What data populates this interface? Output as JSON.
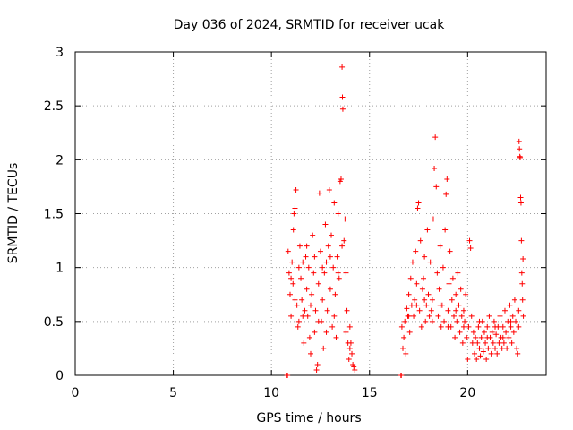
{
  "chart_data": {
    "type": "scatter",
    "title": "Day 036 of 2024, SRMTID for receiver ucak",
    "xlabel": "GPS time / hours",
    "ylabel": "SRMTID / TECUs",
    "xlim": [
      0,
      24
    ],
    "ylim": [
      0,
      3
    ],
    "xticks": [
      0,
      5,
      10,
      15,
      20
    ],
    "yticks": [
      0,
      0.5,
      1,
      1.5,
      2,
      2.5,
      3
    ],
    "xtick_labels": [
      "0",
      "5",
      "10",
      "15",
      "20"
    ],
    "ytick_labels": [
      "0",
      "0.5",
      "1",
      "1.5",
      "2",
      "2.5",
      "3"
    ],
    "grid": true,
    "marker": "+",
    "color": "#ff0000",
    "series": [
      {
        "name": "SRMTID",
        "points": [
          [
            10.8,
            0.0
          ],
          [
            10.82,
            0.0
          ],
          [
            16.6,
            0.0
          ],
          [
            16.62,
            0.0
          ],
          [
            10.85,
            1.15
          ],
          [
            10.9,
            0.95
          ],
          [
            10.95,
            0.75
          ],
          [
            11.0,
            0.55
          ],
          [
            11.05,
            1.05
          ],
          [
            11.1,
            0.85
          ],
          [
            11.12,
            1.35
          ],
          [
            11.15,
            1.5
          ],
          [
            11.2,
            1.55
          ],
          [
            11.25,
            1.72
          ],
          [
            11.3,
            0.65
          ],
          [
            11.35,
            0.45
          ],
          [
            11.4,
            0.5
          ],
          [
            11.45,
            1.2
          ],
          [
            11.5,
            0.9
          ],
          [
            11.55,
            0.7
          ],
          [
            11.6,
            1.05
          ],
          [
            11.65,
            0.3
          ],
          [
            11.7,
            0.6
          ],
          [
            11.75,
            1.1
          ],
          [
            11.8,
            0.8
          ],
          [
            11.85,
            0.55
          ],
          [
            11.9,
            1.0
          ],
          [
            11.95,
            0.35
          ],
          [
            12.0,
            0.2
          ],
          [
            12.05,
            0.75
          ],
          [
            12.1,
            1.3
          ],
          [
            12.15,
            0.95
          ],
          [
            12.2,
            0.4
          ],
          [
            12.25,
            0.6
          ],
          [
            12.3,
            0.05
          ],
          [
            12.35,
            0.1
          ],
          [
            12.4,
            0.85
          ],
          [
            12.45,
            1.69
          ],
          [
            12.5,
            1.15
          ],
          [
            12.55,
            0.5
          ],
          [
            12.6,
            0.7
          ],
          [
            12.65,
            0.25
          ],
          [
            12.7,
            0.95
          ],
          [
            12.75,
            1.4
          ],
          [
            12.8,
            1.05
          ],
          [
            12.85,
            0.6
          ],
          [
            12.9,
            1.2
          ],
          [
            12.95,
            1.72
          ],
          [
            13.0,
            0.8
          ],
          [
            13.05,
            1.3
          ],
          [
            13.1,
            0.45
          ],
          [
            13.15,
            1.0
          ],
          [
            13.2,
            1.6
          ],
          [
            13.25,
            0.75
          ],
          [
            13.3,
            0.35
          ],
          [
            13.35,
            1.1
          ],
          [
            13.4,
            1.5
          ],
          [
            13.45,
            0.9
          ],
          [
            13.5,
            1.8
          ],
          [
            13.55,
            1.82
          ],
          [
            13.6,
            2.86
          ],
          [
            13.62,
            2.58
          ],
          [
            13.64,
            2.47
          ],
          [
            13.7,
            1.25
          ],
          [
            13.75,
            1.45
          ],
          [
            13.8,
            0.95
          ],
          [
            13.85,
            0.6
          ],
          [
            13.9,
            0.3
          ],
          [
            13.95,
            0.15
          ],
          [
            14.0,
            0.45
          ],
          [
            14.05,
            0.3
          ],
          [
            14.1,
            0.2
          ],
          [
            14.15,
            0.1
          ],
          [
            14.2,
            0.08
          ],
          [
            14.25,
            0.05
          ],
          [
            11.0,
            0.9
          ],
          [
            11.2,
            0.7
          ],
          [
            11.4,
            1.0
          ],
          [
            11.6,
            0.55
          ],
          [
            11.8,
            1.2
          ],
          [
            12.0,
            0.65
          ],
          [
            12.2,
            1.1
          ],
          [
            12.4,
            0.5
          ],
          [
            12.6,
            1.0
          ],
          [
            12.8,
            0.4
          ],
          [
            13.0,
            1.1
          ],
          [
            13.2,
            0.55
          ],
          [
            13.4,
            0.95
          ],
          [
            13.6,
            1.2
          ],
          [
            13.8,
            0.4
          ],
          [
            14.0,
            0.25
          ],
          [
            16.65,
            0.45
          ],
          [
            16.7,
            0.25
          ],
          [
            16.75,
            0.35
          ],
          [
            16.8,
            0.5
          ],
          [
            16.85,
            0.2
          ],
          [
            16.9,
            0.62
          ],
          [
            16.95,
            0.55
          ],
          [
            17.0,
            0.75
          ],
          [
            17.05,
            0.4
          ],
          [
            17.1,
            0.9
          ],
          [
            17.15,
            0.65
          ],
          [
            17.2,
            1.05
          ],
          [
            17.25,
            0.55
          ],
          [
            17.3,
            0.7
          ],
          [
            17.35,
            1.15
          ],
          [
            17.4,
            0.85
          ],
          [
            17.45,
            1.55
          ],
          [
            17.5,
            1.6
          ],
          [
            17.55,
            0.6
          ],
          [
            17.6,
            1.25
          ],
          [
            17.65,
            0.45
          ],
          [
            17.7,
            0.8
          ],
          [
            17.75,
            0.9
          ],
          [
            17.8,
            1.1
          ],
          [
            17.85,
            0.5
          ],
          [
            17.9,
            0.65
          ],
          [
            17.95,
            1.35
          ],
          [
            18.0,
            0.75
          ],
          [
            18.05,
            0.55
          ],
          [
            18.1,
            1.05
          ],
          [
            18.15,
            0.6
          ],
          [
            18.2,
            0.7
          ],
          [
            18.25,
            1.45
          ],
          [
            18.3,
            1.92
          ],
          [
            18.35,
            2.21
          ],
          [
            18.4,
            1.75
          ],
          [
            18.45,
            0.95
          ],
          [
            18.5,
            0.55
          ],
          [
            18.55,
            0.8
          ],
          [
            18.6,
            1.2
          ],
          [
            18.65,
            0.45
          ],
          [
            18.7,
            0.65
          ],
          [
            18.75,
            1.0
          ],
          [
            18.8,
            0.5
          ],
          [
            18.85,
            1.35
          ],
          [
            18.9,
            1.68
          ],
          [
            18.95,
            1.82
          ],
          [
            19.0,
            0.6
          ],
          [
            19.05,
            0.85
          ],
          [
            19.1,
            1.15
          ],
          [
            19.15,
            0.45
          ],
          [
            19.2,
            0.7
          ],
          [
            19.25,
            0.9
          ],
          [
            19.3,
            0.55
          ],
          [
            19.35,
            0.35
          ],
          [
            19.4,
            0.75
          ],
          [
            19.45,
            0.5
          ],
          [
            19.5,
            0.95
          ],
          [
            19.55,
            0.65
          ],
          [
            19.6,
            0.4
          ],
          [
            19.65,
            0.8
          ],
          [
            19.7,
            0.55
          ],
          [
            19.75,
            0.3
          ],
          [
            19.8,
            0.6
          ],
          [
            19.85,
            0.5
          ],
          [
            19.9,
            0.75
          ],
          [
            19.95,
            0.35
          ],
          [
            20.0,
            0.15
          ],
          [
            20.05,
            0.45
          ],
          [
            20.1,
            1.25
          ],
          [
            20.15,
            1.18
          ],
          [
            20.2,
            0.55
          ],
          [
            20.25,
            0.3
          ],
          [
            17.0,
            0.55
          ],
          [
            17.4,
            0.65
          ],
          [
            17.8,
            0.7
          ],
          [
            18.2,
            0.5
          ],
          [
            18.6,
            0.65
          ],
          [
            19.0,
            0.45
          ],
          [
            19.4,
            0.6
          ],
          [
            19.8,
            0.45
          ],
          [
            20.3,
            0.4
          ],
          [
            20.35,
            0.2
          ],
          [
            20.4,
            0.35
          ],
          [
            20.45,
            0.15
          ],
          [
            20.5,
            0.3
          ],
          [
            20.55,
            0.45
          ],
          [
            20.6,
            0.25
          ],
          [
            20.65,
            0.18
          ],
          [
            20.7,
            0.35
          ],
          [
            20.75,
            0.5
          ],
          [
            20.8,
            0.22
          ],
          [
            20.85,
            0.4
          ],
          [
            20.9,
            0.3
          ],
          [
            20.95,
            0.15
          ],
          [
            21.0,
            0.45
          ],
          [
            21.05,
            0.25
          ],
          [
            21.1,
            0.55
          ],
          [
            21.15,
            0.35
          ],
          [
            21.2,
            0.2
          ],
          [
            21.25,
            0.4
          ],
          [
            21.3,
            0.3
          ],
          [
            21.35,
            0.5
          ],
          [
            21.4,
            0.25
          ],
          [
            21.45,
            0.38
          ],
          [
            21.5,
            0.2
          ],
          [
            21.55,
            0.45
          ],
          [
            21.6,
            0.3
          ],
          [
            21.65,
            0.55
          ],
          [
            21.7,
            0.35
          ],
          [
            21.75,
            0.25
          ],
          [
            21.8,
            0.45
          ],
          [
            21.85,
            0.3
          ],
          [
            21.9,
            0.6
          ],
          [
            21.95,
            0.4
          ],
          [
            22.0,
            0.25
          ],
          [
            22.05,
            0.5
          ],
          [
            22.1,
            0.35
          ],
          [
            22.15,
            0.65
          ],
          [
            22.2,
            0.45
          ],
          [
            22.25,
            0.3
          ],
          [
            22.3,
            0.55
          ],
          [
            22.35,
            0.4
          ],
          [
            22.4,
            0.7
          ],
          [
            22.45,
            0.5
          ],
          [
            22.5,
            0.25
          ],
          [
            22.55,
            0.2
          ],
          [
            22.6,
            0.6
          ],
          [
            22.62,
            2.17
          ],
          [
            22.64,
            2.1
          ],
          [
            22.66,
            2.03
          ],
          [
            22.68,
            2.02
          ],
          [
            22.7,
            1.65
          ],
          [
            22.72,
            1.6
          ],
          [
            22.74,
            1.25
          ],
          [
            22.76,
            0.95
          ],
          [
            22.78,
            0.85
          ],
          [
            22.8,
            0.7
          ],
          [
            22.82,
            1.08
          ],
          [
            22.84,
            0.55
          ],
          [
            20.6,
            0.5
          ],
          [
            21.0,
            0.35
          ],
          [
            21.4,
            0.45
          ],
          [
            21.8,
            0.35
          ],
          [
            22.2,
            0.5
          ],
          [
            22.6,
            0.45
          ]
        ]
      }
    ]
  }
}
